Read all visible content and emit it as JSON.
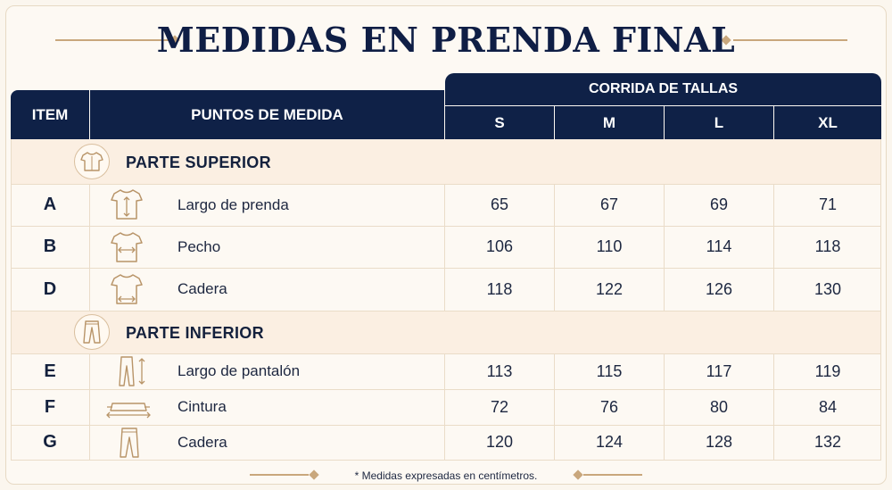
{
  "title": "MEDIDAS EN PRENDA FINAL",
  "headers": {
    "item": "ITEM",
    "points": "PUNTOS DE MEDIDA",
    "sizes_group": "CORRIDA DE TALLAS",
    "sizes": [
      "S",
      "M",
      "L",
      "XL"
    ]
  },
  "sections": [
    {
      "title": "PARTE SUPERIOR",
      "icon": "tshirt-icon",
      "rows": [
        {
          "item": "A",
          "label": "Largo de prenda",
          "icon": "tshirt-length-icon",
          "values": [
            "65",
            "67",
            "69",
            "71"
          ]
        },
        {
          "item": "B",
          "label": "Pecho",
          "icon": "tshirt-chest-icon",
          "values": [
            "106",
            "110",
            "114",
            "118"
          ]
        },
        {
          "item": "D",
          "label": "Cadera",
          "icon": "tshirt-hip-icon",
          "values": [
            "118",
            "122",
            "126",
            "130"
          ]
        }
      ]
    },
    {
      "title": "PARTE INFERIOR",
      "icon": "pants-icon",
      "rows": [
        {
          "item": "E",
          "label": "Largo de pantalón",
          "icon": "pants-length-icon",
          "values": [
            "113",
            "115",
            "117",
            "119"
          ]
        },
        {
          "item": "F",
          "label": "Cintura",
          "icon": "waist-icon",
          "values": [
            "72",
            "76",
            "80",
            "84"
          ]
        },
        {
          "item": "G",
          "label": "Cadera",
          "icon": "pants-hip-icon",
          "values": [
            "120",
            "124",
            "128",
            "132"
          ]
        }
      ]
    }
  ],
  "footnote": "* Medidas expresadas en centímetros.",
  "colors": {
    "navy": "#0f2147",
    "beige": "#fbefe2",
    "gold": "#c9a77c"
  }
}
